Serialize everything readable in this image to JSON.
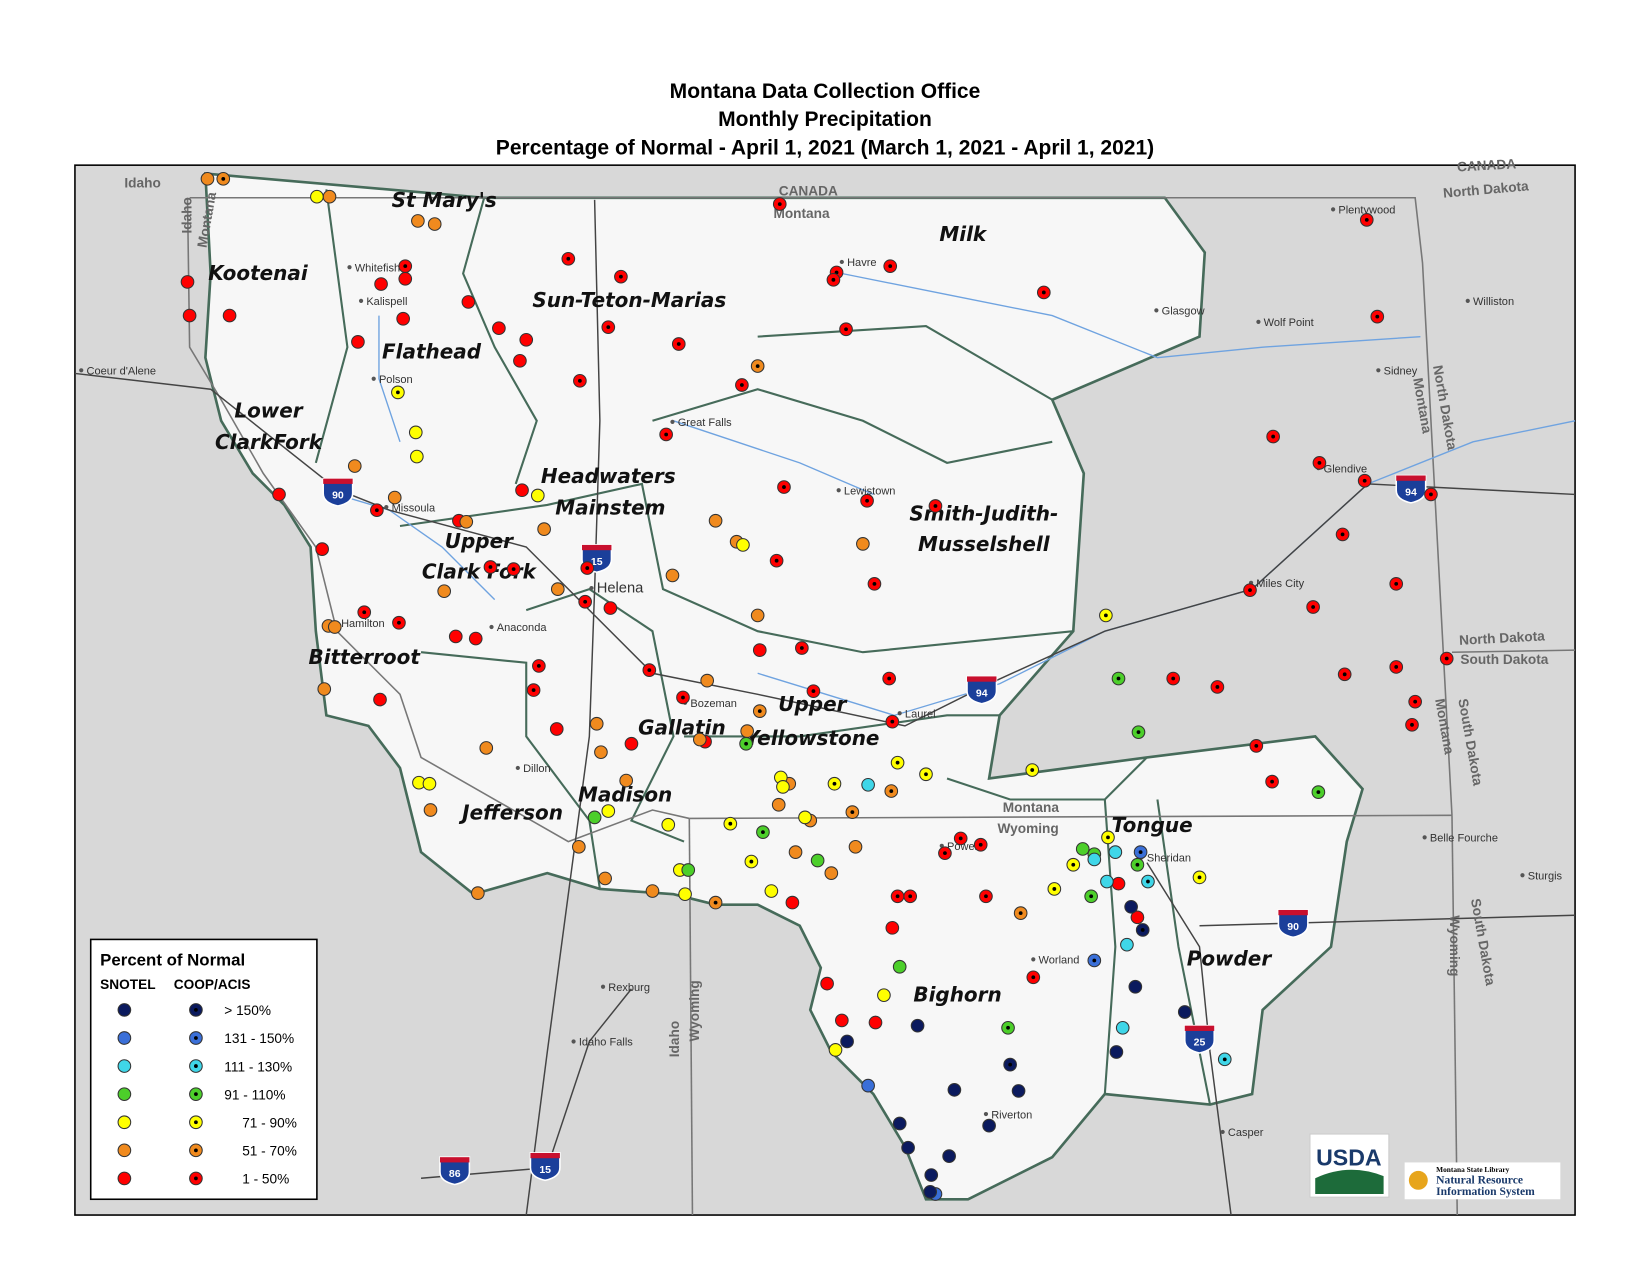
{
  "title": [
    "Montana Data Collection Office",
    "Monthly Precipitation",
    "Percentage of Normal - April 1, 2021 (March 1, 2021 - April 1, 2021)"
  ],
  "legend": {
    "title": "Percent of Normal",
    "columns": [
      "SNOTEL",
      "COOP/ACIS"
    ],
    "classes": [
      {
        "label": "> 150%",
        "color": "#0b1a5e"
      },
      {
        "label": "131 - 150%",
        "color": "#3a6fd8"
      },
      {
        "label": "111 - 130%",
        "color": "#3fd6e8"
      },
      {
        "label": "91 - 110%",
        "color": "#4ccf2a"
      },
      {
        "label": "71 - 90%",
        "color": "#ffff00"
      },
      {
        "label": "51 - 70%",
        "color": "#f08a1e"
      },
      {
        "label": "1 - 50%",
        "color": "#ff0000"
      }
    ]
  },
  "basins": [
    "St Mary's",
    "Kootenai",
    "Milk",
    "Sun-Teton-Marias",
    "Flathead",
    "Lower",
    "ClarkFork",
    "Headwaters",
    "Mainstem",
    "Upper",
    "Clark Fork",
    "Smith-Judith-",
    "Musselshell",
    "Bitterroot",
    "Upper",
    "Yellowstone",
    "Gallatin",
    "Madison",
    "Jefferson",
    "Tongue",
    "Powder",
    "Bighorn"
  ],
  "places": [
    "Whitefish",
    "Kalispell",
    "Polson",
    "Missoula",
    "Hamilton",
    "Anaconda",
    "Helena",
    "Great Falls",
    "Havre",
    "Glasgow",
    "Plentywood",
    "Wolf Point",
    "Williston",
    "Sidney",
    "Glendive",
    "Lewistown",
    "Miles City",
    "Laurel",
    "Bozeman",
    "Dillon",
    "Powell",
    "Sheridan",
    "Worland",
    "Riverton",
    "Casper",
    "Belle Fourche",
    "Sturgis",
    "Coeur d'Alene",
    "Rexburg",
    "Idaho Falls"
  ],
  "borders": [
    "Idaho",
    "Idaho",
    "Montana",
    "CANADA",
    "Montana",
    "CANADA",
    "North Dakota",
    "North Dakota",
    "Montana",
    "North Dakota",
    "South Dakota",
    "Montana",
    "South Dakota",
    "South Dakota",
    "Wyoming",
    "Montana",
    "Wyoming",
    "Idaho",
    "Wyoming"
  ],
  "highways": [
    "90",
    "94",
    "15",
    "94",
    "90",
    "25",
    "86",
    "15"
  ],
  "logos": {
    "usda": "USDA",
    "library": "Montana State Library",
    "nris": [
      "Natural Resource",
      "Information System"
    ]
  }
}
